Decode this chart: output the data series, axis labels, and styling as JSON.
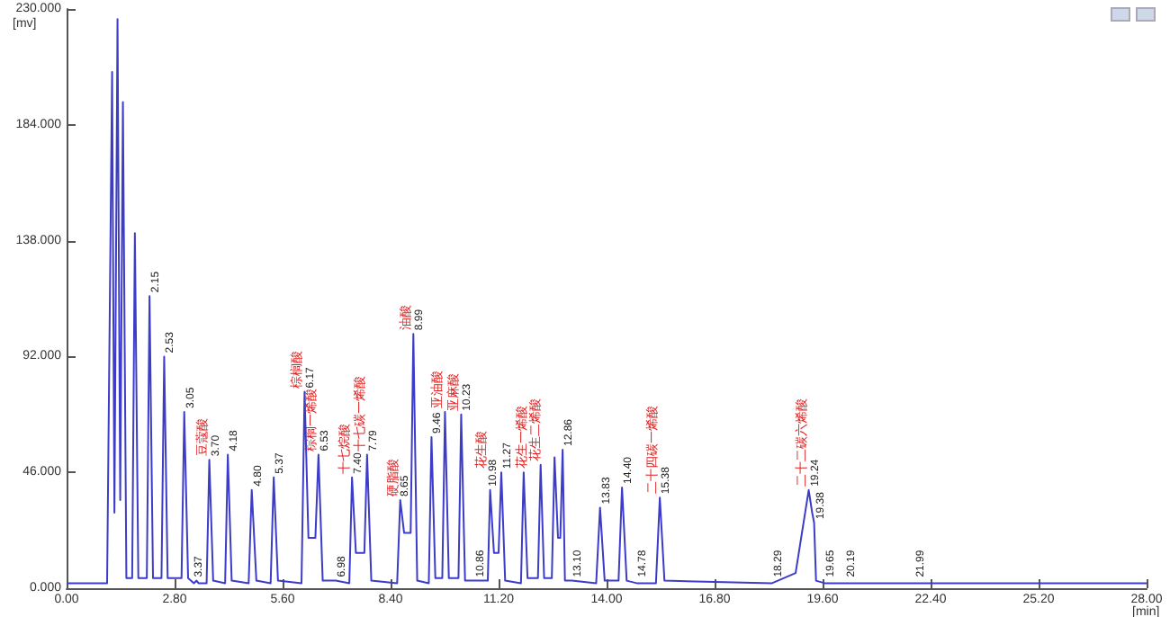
{
  "chart_data": {
    "type": "line",
    "xlabel": "[min]",
    "ylabel": "[mv]",
    "x": [
      0,
      1.05,
      1.18,
      1.24,
      1.32,
      1.39,
      1.46,
      1.55,
      1.7,
      1.77,
      1.86,
      2.08,
      2.15,
      2.24,
      2.46,
      2.53,
      2.62,
      2.98,
      3.05,
      3.15,
      3.3,
      3.37,
      3.42,
      3.63,
      3.7,
      3.8,
      4.11,
      4.18,
      4.28,
      4.72,
      4.8,
      4.92,
      5.29,
      5.37,
      5.48,
      6.09,
      6.17,
      6.27,
      6.45,
      6.53,
      6.64,
      6.98,
      7.33,
      7.4,
      7.5,
      7.72,
      7.79,
      7.9,
      8.57,
      8.65,
      8.75,
      8.92,
      8.99,
      9.09,
      9.39,
      9.46,
      9.56,
      9.74,
      9.81,
      9.91,
      10.16,
      10.23,
      10.33,
      10.86,
      10.92,
      10.98,
      11.08,
      11.2,
      11.27,
      11.37,
      11.78,
      11.85,
      11.95,
      12.22,
      12.29,
      12.38,
      12.58,
      12.65,
      12.74,
      12.8,
      12.86,
      12.92,
      13.1,
      13.73,
      13.83,
      13.95,
      14.31,
      14.4,
      14.52,
      14.78,
      15.28,
      15.38,
      15.5,
      18.29,
      18.9,
      19.24,
      19.33,
      19.38,
      19.43,
      19.65,
      20.19,
      21.99,
      28
    ],
    "values": [
      2,
      2,
      205,
      30,
      226,
      35,
      193,
      4,
      4,
      141,
      4,
      4,
      116,
      4,
      4,
      92,
      4,
      4,
      70,
      4,
      2,
      3,
      2,
      2,
      51,
      3,
      2,
      53,
      3,
      2,
      39,
      3,
      2,
      44,
      3,
      2,
      78,
      20,
      20,
      53,
      3,
      3,
      2,
      44,
      14,
      14,
      53,
      3,
      2,
      35,
      22,
      22,
      101,
      3,
      2,
      60,
      4,
      4,
      70,
      4,
      4,
      69,
      3,
      3,
      3,
      39,
      14,
      14,
      46,
      3,
      2,
      46,
      4,
      4,
      49,
      4,
      4,
      52,
      20,
      20,
      55,
      3,
      3,
      2,
      32,
      3,
      3,
      40,
      3,
      2,
      2,
      36,
      3,
      2,
      6,
      39,
      30,
      26,
      3,
      2,
      2,
      2,
      2
    ],
    "color": "#3c3cc8",
    "line_style": "solid",
    "marker": "none",
    "grid": false,
    "xlim": [
      0,
      28
    ],
    "xticks": [
      {
        "value": 0,
        "label": "0.00"
      },
      {
        "value": 2.8,
        "label": "2.80"
      },
      {
        "value": 5.6,
        "label": "5.60"
      },
      {
        "value": 8.4,
        "label": "8.40"
      },
      {
        "value": 11.2,
        "label": "11.20"
      },
      {
        "value": 14,
        "label": "14.00"
      },
      {
        "value": 16.8,
        "label": "16.80"
      },
      {
        "value": 19.6,
        "label": "19.60"
      },
      {
        "value": 22.4,
        "label": "22.40"
      },
      {
        "value": 25.2,
        "label": "25.20"
      },
      {
        "value": 28,
        "label": "28.00"
      }
    ],
    "ylim": [
      0,
      230
    ],
    "yticks": [
      {
        "value": 0,
        "label": "0.000"
      },
      {
        "value": 46,
        "label": "46.000"
      },
      {
        "value": 92,
        "label": "92.000"
      },
      {
        "value": 138,
        "label": "138.000"
      },
      {
        "value": 184,
        "label": "184.000"
      },
      {
        "value": 230,
        "label": "230.000"
      }
    ],
    "annotations": [
      {
        "text": "2.15",
        "x": 2.15,
        "y": 116
      },
      {
        "text": "2.53",
        "x": 2.53,
        "y": 92
      },
      {
        "text": "3.05",
        "x": 3.05,
        "y": 70
      },
      {
        "text": "3.37",
        "x": 3.37,
        "y": 3
      },
      {
        "text": "豆蔻酸",
        "x": 3.7,
        "y": 51
      },
      {
        "text": "3.70",
        "x": 3.7,
        "y": 51
      },
      {
        "text": "4.18",
        "x": 4.18,
        "y": 53
      },
      {
        "text": "4.80",
        "x": 4.8,
        "y": 39
      },
      {
        "text": "5.37",
        "x": 5.37,
        "y": 44
      },
      {
        "text": "棕榈酸",
        "x": 6.17,
        "y": 78
      },
      {
        "text": "6.17",
        "x": 6.17,
        "y": 78
      },
      {
        "text": "棕榈一烯酸",
        "x": 6.53,
        "y": 53
      },
      {
        "text": "6.53",
        "x": 6.53,
        "y": 53
      },
      {
        "text": "6.98",
        "x": 6.98,
        "y": 3
      },
      {
        "text": "十七烷酸",
        "x": 7.4,
        "y": 44
      },
      {
        "text": "7.40",
        "x": 7.4,
        "y": 44
      },
      {
        "text": "十七碳一烯酸",
        "x": 7.79,
        "y": 53
      },
      {
        "text": "7.79",
        "x": 7.79,
        "y": 53
      },
      {
        "text": "硬脂酸",
        "x": 8.65,
        "y": 35
      },
      {
        "text": "8.65",
        "x": 8.65,
        "y": 35
      },
      {
        "text": "油酸",
        "x": 8.99,
        "y": 101
      },
      {
        "text": "8.99",
        "x": 8.99,
        "y": 101
      },
      {
        "text": "9.46",
        "x": 9.46,
        "y": 60
      },
      {
        "text": "亚油酸",
        "x": 9.81,
        "y": 70
      },
      {
        "text": "亚麻酸",
        "x": 10.23,
        "y": 69
      },
      {
        "text": "10.23",
        "x": 10.23,
        "y": 69
      },
      {
        "text": "10.86",
        "x": 10.86,
        "y": 3
      },
      {
        "text": "10.98",
        "x": 10.98,
        "y": 39
      },
      {
        "text": "花生酸",
        "x": 11.27,
        "y": 46
      },
      {
        "text": "11.27",
        "x": 11.27,
        "y": 46
      },
      {
        "text": "花生一烯酸",
        "x": 11.85,
        "y": 46
      },
      {
        "text": "花生二烯酸",
        "x": 12.29,
        "y": 49
      },
      {
        "text": "12.86",
        "x": 12.86,
        "y": 55
      },
      {
        "text": "13.10",
        "x": 13.1,
        "y": 3
      },
      {
        "text": "13.83",
        "x": 13.83,
        "y": 32
      },
      {
        "text": "14.40",
        "x": 14.4,
        "y": 40
      },
      {
        "text": "14.78",
        "x": 14.78,
        "y": 3
      },
      {
        "text": "二十四碳一烯酸",
        "x": 15.38,
        "y": 36
      },
      {
        "text": "15.38",
        "x": 15.38,
        "y": 36
      },
      {
        "text": "18.29",
        "x": 18.29,
        "y": 3
      },
      {
        "text": "二十二碳六烯酸",
        "x": 19.24,
        "y": 39
      },
      {
        "text": "19.24",
        "x": 19.24,
        "y": 39
      },
      {
        "text": "19.38",
        "x": 19.38,
        "y": 26
      },
      {
        "text": "19.65",
        "x": 19.65,
        "y": 3
      },
      {
        "text": "20.19",
        "x": 20.19,
        "y": 3
      },
      {
        "text": "21.99",
        "x": 21.99,
        "y": 3
      }
    ]
  }
}
